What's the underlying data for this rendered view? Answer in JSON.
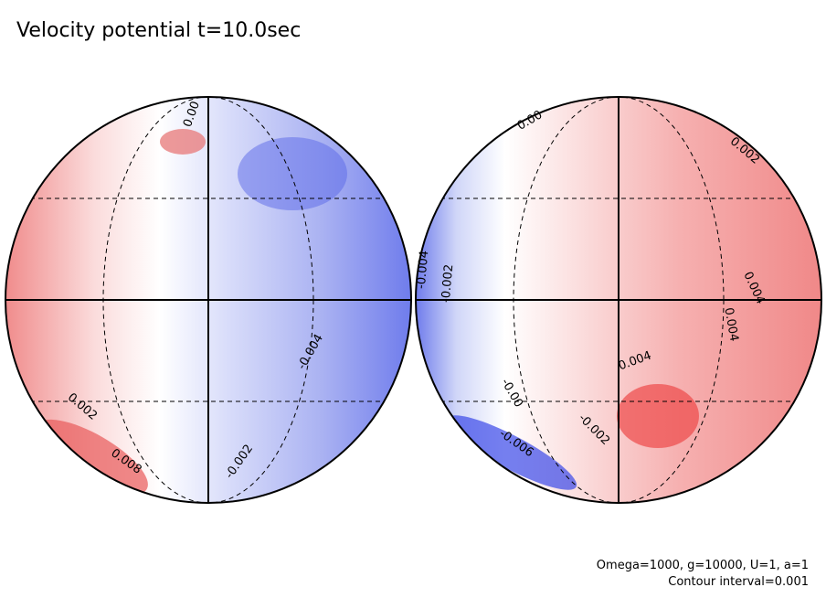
{
  "title": "Velocity potential t=10.0sec",
  "left_globe": {
    "labels": [
      "0.00",
      "0.002",
      "0.008",
      "-0.002",
      "-0.004"
    ]
  },
  "right_globe": {
    "labels": [
      "0.00",
      "0.002",
      "-0.004",
      "-0.002",
      "0.004",
      "0.004",
      "0.004",
      "-0.00",
      "-0.006",
      "-0.002"
    ]
  },
  "footer": [
    "Omega=1000, g=10000, U=1, a=1",
    "Contour interval=0.001"
  ]
}
